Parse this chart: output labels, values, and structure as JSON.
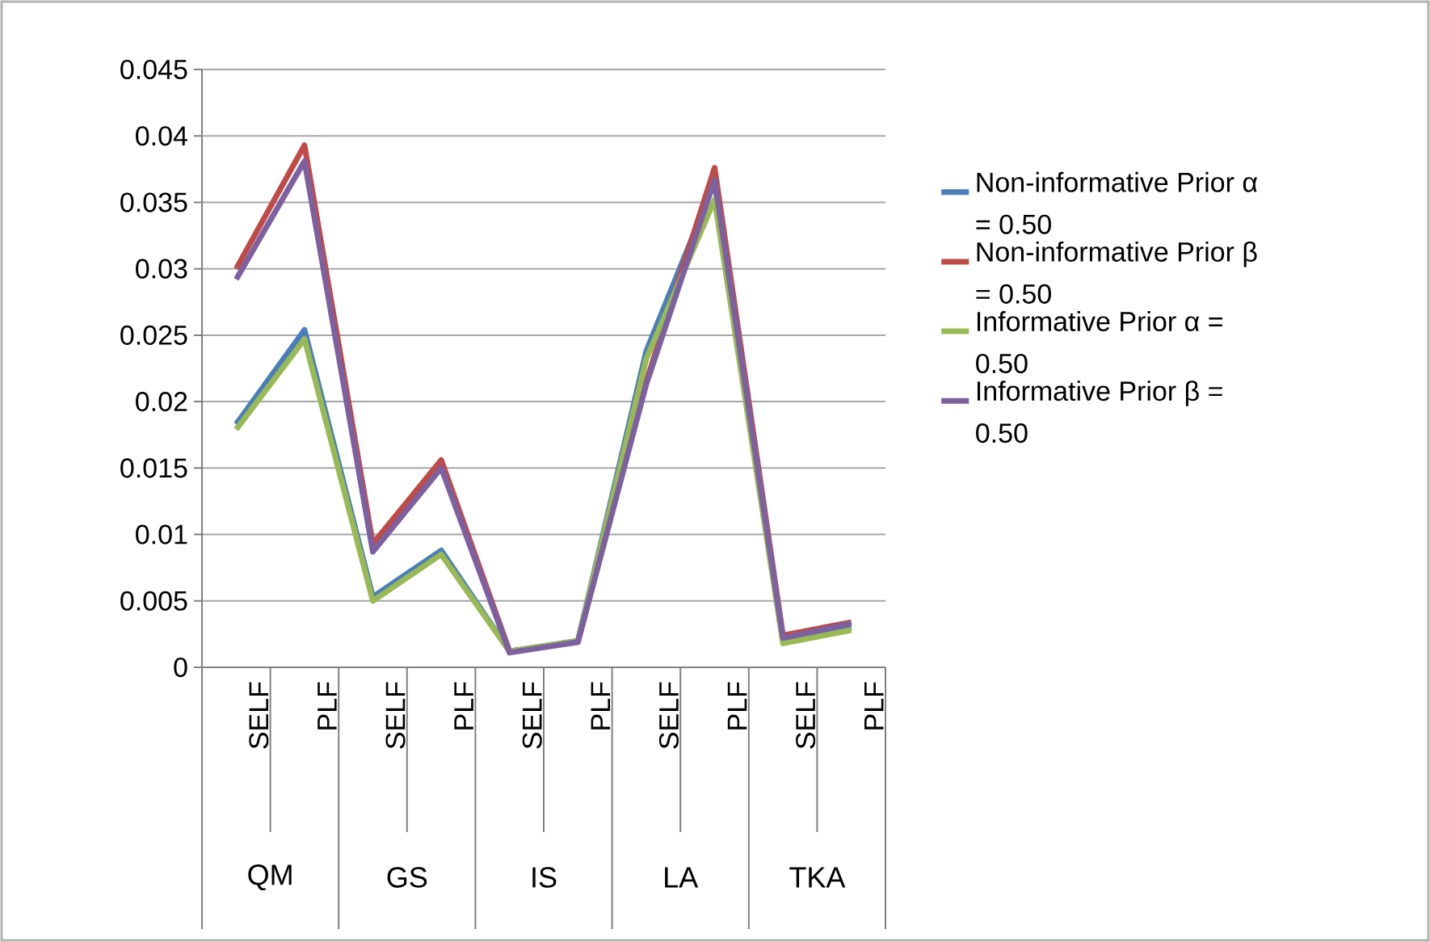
{
  "chart_data": {
    "type": "line",
    "categories": [
      "SELF",
      "PLF",
      "SELF",
      "PLF",
      "SELF",
      "PLF",
      "SELF",
      "PLF",
      "SELF",
      "PLF"
    ],
    "annotations": [
      "QM",
      "GS",
      "IS",
      "LA",
      "TKA"
    ],
    "series": [
      {
        "name": "Non-informative Prior α = 0.50",
        "color": "#4a7ebb",
        "values": [
          0.0183,
          0.0254,
          0.0053,
          0.0088,
          0.0012,
          0.002,
          0.0238,
          0.0365,
          0.002,
          0.003
        ]
      },
      {
        "name": "Non-informative Prior β = 0.50",
        "color": "#be4b48",
        "values": [
          0.03,
          0.0393,
          0.0093,
          0.0156,
          0.0012,
          0.0019,
          0.0215,
          0.0376,
          0.0024,
          0.0034
        ]
      },
      {
        "name": "Informative Prior α = 0.50",
        "color": "#98b954",
        "values": [
          0.0179,
          0.0247,
          0.005,
          0.0085,
          0.0012,
          0.002,
          0.0232,
          0.0352,
          0.0018,
          0.0028
        ]
      },
      {
        "name": "Informative Prior β = 0.50",
        "color": "#7d60a0",
        "values": [
          0.0292,
          0.0381,
          0.0087,
          0.015,
          0.0011,
          0.0019,
          0.0213,
          0.0367,
          0.0022,
          0.0033
        ]
      }
    ],
    "ylim": [
      0,
      0.045
    ],
    "yticks": [
      0,
      0.005,
      0.01,
      0.015,
      0.02,
      0.025,
      0.03,
      0.035,
      0.04,
      0.045
    ],
    "grid": "y",
    "legend": "right",
    "marker": "none",
    "line_style": "solid"
  }
}
